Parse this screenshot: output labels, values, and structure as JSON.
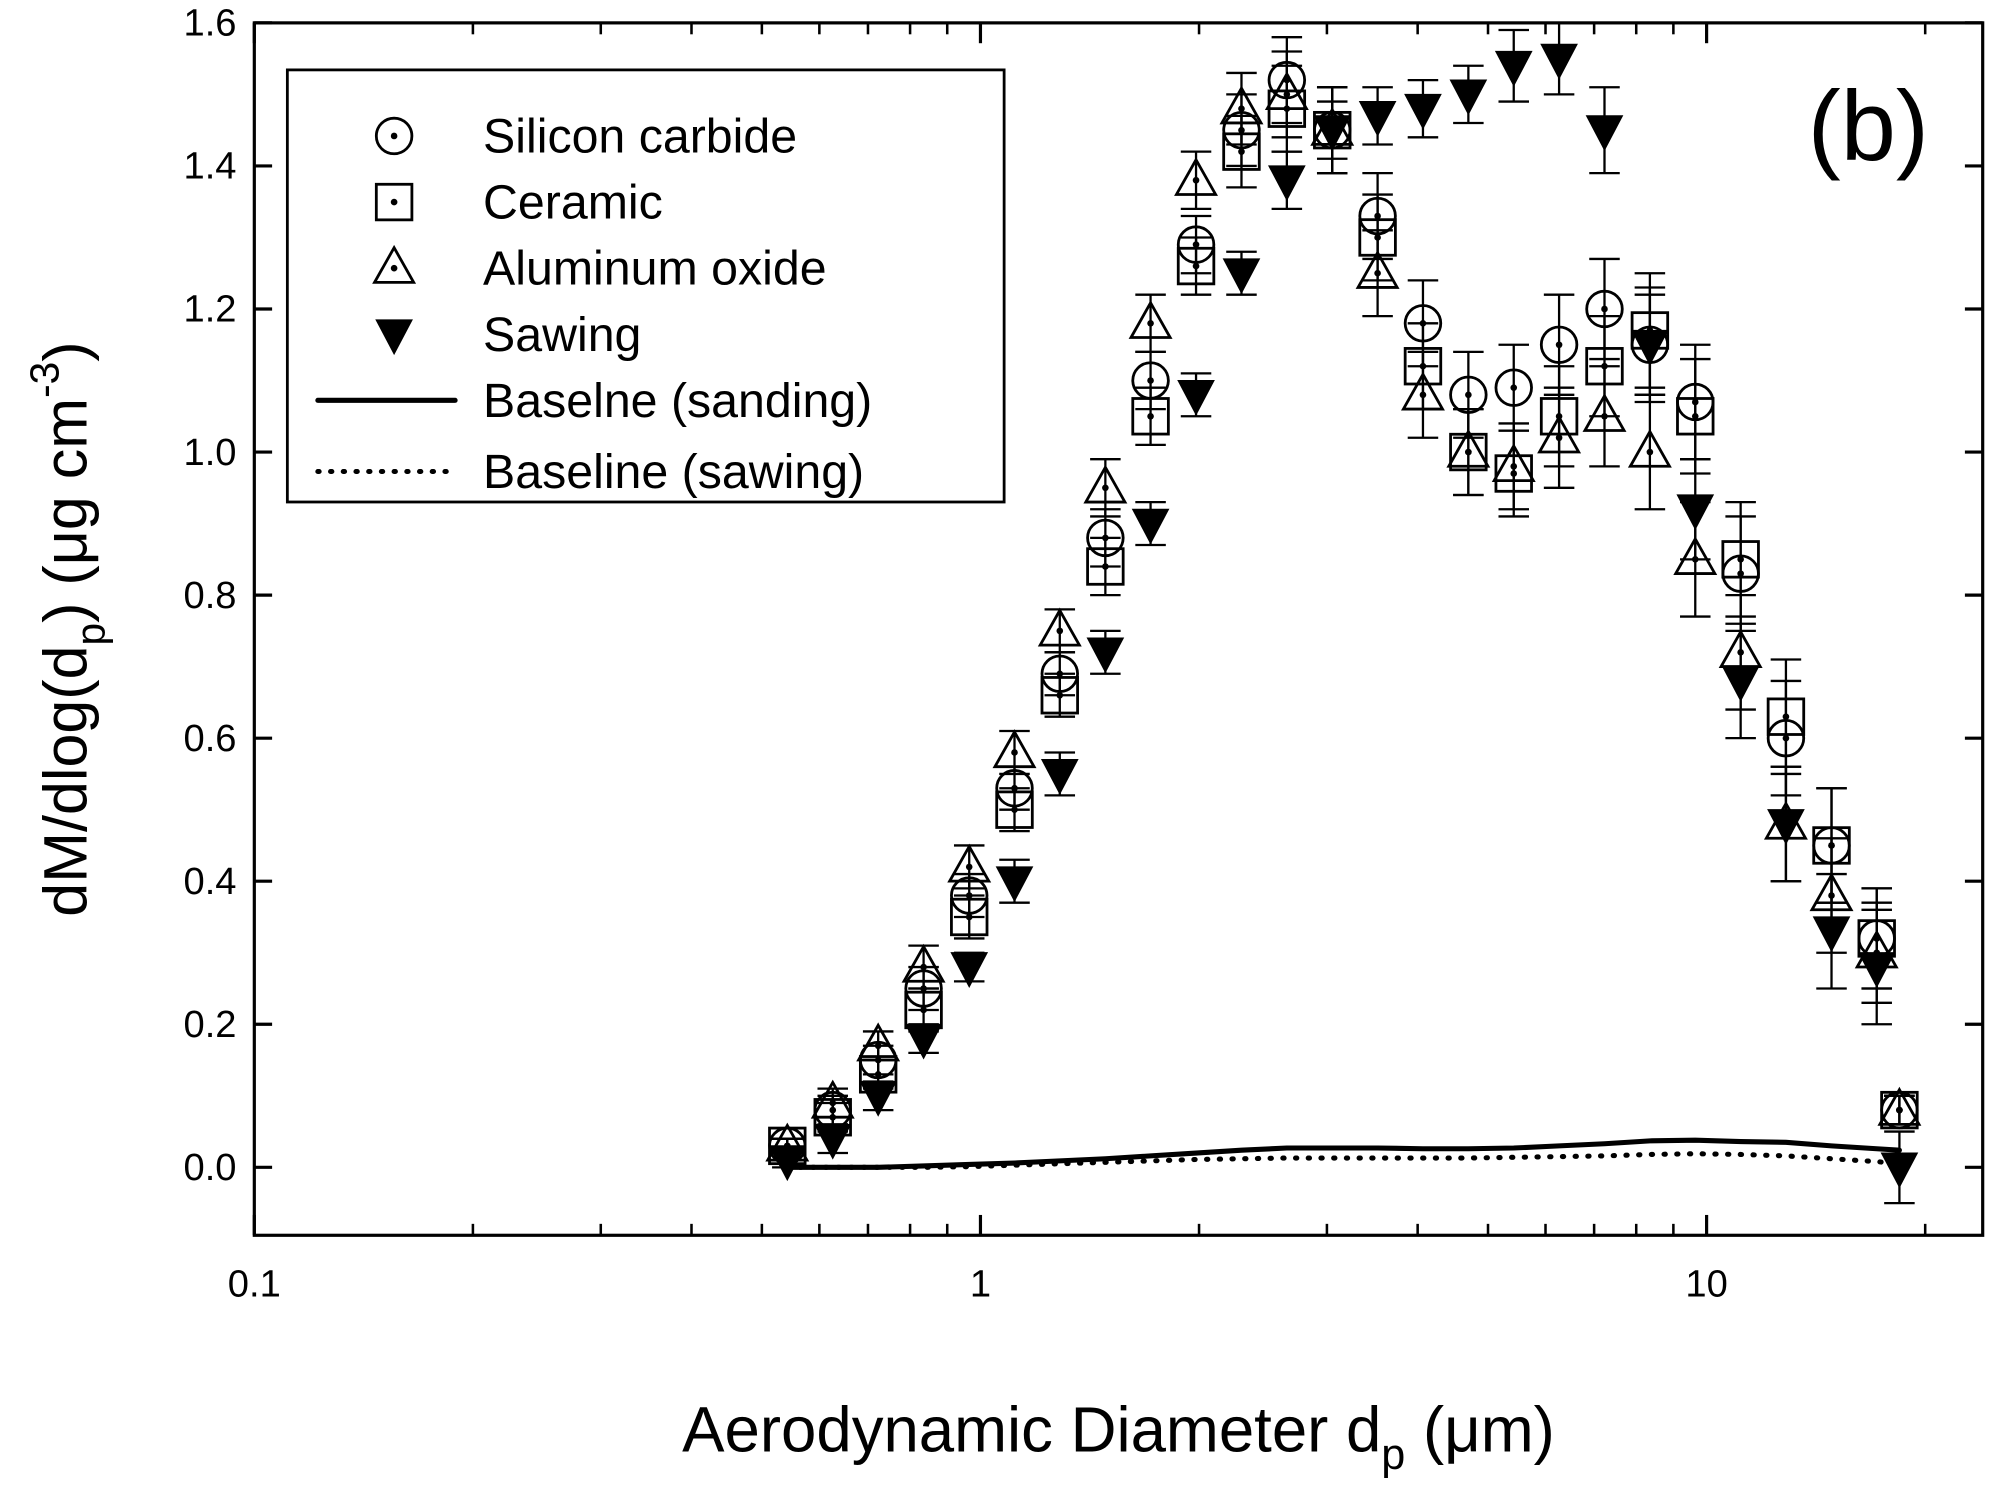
{
  "chart_data": {
    "type": "scatter",
    "xscale": "log",
    "xlim": [
      0.1,
      24
    ],
    "ylim": [
      -0.095,
      1.6
    ],
    "xticks": [
      0.1,
      1,
      10
    ],
    "xminor_ticks": [
      0.2,
      0.3,
      0.4,
      0.5,
      0.6,
      0.7,
      0.8,
      0.9,
      2,
      3,
      4,
      5,
      6,
      7,
      8,
      9,
      20
    ],
    "yticks": [
      {
        "value": 0,
        "label": "0.0"
      },
      0.2,
      0.4,
      0.6,
      0.8,
      {
        "value": 1,
        "label": "1.0"
      },
      1.2,
      1.4,
      1.6
    ],
    "xlabel": [
      "Aerodynamic Diameter d",
      "p",
      " (μm)"
    ],
    "ylabel": [
      "dM/dlog(d",
      "p",
      ") (μg cm",
      "-3",
      ")"
    ],
    "annotation": "(b)",
    "legend": "upper left",
    "x": [
      0.542,
      0.626,
      0.723,
      0.835,
      0.965,
      1.114,
      1.286,
      1.486,
      1.715,
      1.981,
      2.288,
      2.642,
      3.051,
      3.523,
      4.068,
      4.698,
      5.425,
      6.264,
      7.234,
      8.354,
      9.647,
      11.14,
      12.86,
      14.86,
      17.15,
      18.43
    ],
    "series": [
      {
        "name": "Silicon carbide",
        "marker": "circle-dot",
        "color": "#000000",
        "values": [
          0.03,
          0.08,
          0.15,
          0.25,
          0.38,
          0.53,
          0.69,
          0.88,
          1.1,
          1.29,
          1.45,
          1.52,
          1.45,
          1.33,
          1.18,
          1.08,
          1.09,
          1.15,
          1.2,
          1.15,
          1.07,
          0.83,
          0.6,
          0.45,
          0.32,
          0.08
        ],
        "errors": [
          0.01,
          0.02,
          0.02,
          0.03,
          0.03,
          0.03,
          0.03,
          0.04,
          0.04,
          0.04,
          0.05,
          0.06,
          0.06,
          0.06,
          0.06,
          0.06,
          0.06,
          0.07,
          0.07,
          0.08,
          0.08,
          0.08,
          0.08,
          0.08,
          0.07,
          0.02
        ]
      },
      {
        "name": "Ceramic",
        "marker": "square-dot",
        "color": "#000000",
        "values": [
          0.03,
          0.07,
          0.13,
          0.22,
          0.35,
          0.5,
          0.66,
          0.84,
          1.05,
          1.26,
          1.42,
          1.48,
          1.45,
          1.3,
          1.12,
          1.0,
          0.97,
          1.05,
          1.12,
          1.17,
          1.05,
          0.85,
          0.63,
          0.45,
          0.32,
          0.08
        ],
        "errors": [
          0.01,
          0.02,
          0.02,
          0.03,
          0.03,
          0.03,
          0.03,
          0.04,
          0.04,
          0.04,
          0.05,
          0.06,
          0.06,
          0.06,
          0.06,
          0.06,
          0.06,
          0.07,
          0.07,
          0.08,
          0.08,
          0.08,
          0.08,
          0.08,
          0.07,
          0.02
        ]
      },
      {
        "name": "Aluminum oxide",
        "marker": "triangle-dot",
        "color": "#000000",
        "values": [
          0.03,
          0.09,
          0.17,
          0.28,
          0.42,
          0.58,
          0.75,
          0.95,
          1.18,
          1.38,
          1.48,
          1.5,
          1.45,
          1.25,
          1.08,
          1.0,
          0.98,
          1.02,
          1.05,
          1.0,
          0.85,
          0.72,
          0.48,
          0.38,
          0.3,
          0.08
        ],
        "errors": [
          0.01,
          0.02,
          0.02,
          0.03,
          0.03,
          0.03,
          0.03,
          0.04,
          0.04,
          0.04,
          0.05,
          0.06,
          0.06,
          0.06,
          0.06,
          0.06,
          0.06,
          0.07,
          0.07,
          0.08,
          0.08,
          0.08,
          0.08,
          0.08,
          0.07,
          0.02
        ]
      },
      {
        "name": "Sawing",
        "marker": "triangle-down-filled",
        "color": "#000000",
        "values": [
          0.01,
          0.04,
          0.1,
          0.18,
          0.28,
          0.4,
          0.55,
          0.72,
          0.9,
          1.08,
          1.25,
          1.38,
          1.45,
          1.47,
          1.48,
          1.5,
          1.54,
          1.55,
          1.45,
          1.15,
          0.92,
          0.68,
          0.48,
          0.33,
          0.28,
          0.0
        ],
        "errors": [
          0.01,
          0.02,
          0.02,
          0.02,
          0.02,
          0.03,
          0.03,
          0.03,
          0.03,
          0.03,
          0.03,
          0.04,
          0.04,
          0.04,
          0.04,
          0.04,
          0.05,
          0.05,
          0.06,
          0.07,
          0.07,
          0.08,
          0.08,
          0.08,
          0.08,
          0.05
        ]
      },
      {
        "name": "Baselne (sanding)",
        "marker": "line-solid",
        "color": "#000000",
        "values": [
          0.0,
          0.0,
          0.0,
          0.002,
          0.004,
          0.006,
          0.009,
          0.012,
          0.016,
          0.02,
          0.024,
          0.027,
          0.027,
          0.027,
          0.026,
          0.026,
          0.027,
          0.03,
          0.033,
          0.037,
          0.038,
          0.036,
          0.035,
          0.03,
          0.026,
          0.024
        ]
      },
      {
        "name": "Baseline (sawing)",
        "marker": "line-dotted",
        "color": "#000000",
        "values": [
          0.0,
          0.0,
          0.0,
          0.0,
          0.001,
          0.003,
          0.005,
          0.007,
          0.009,
          0.011,
          0.012,
          0.013,
          0.013,
          0.013,
          0.013,
          0.013,
          0.014,
          0.015,
          0.016,
          0.018,
          0.019,
          0.018,
          0.016,
          0.012,
          0.008,
          0.005
        ]
      }
    ]
  }
}
